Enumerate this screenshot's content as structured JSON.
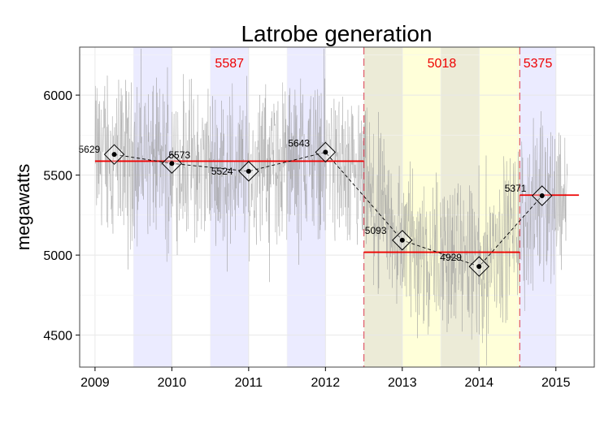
{
  "chart_data": {
    "type": "line",
    "title": "Latrobe generation",
    "xlabel": "",
    "ylabel": "megawatts",
    "xlim": [
      2008.8,
      2015.5
    ],
    "ylim": [
      4300,
      6300
    ],
    "x_ticks": [
      "2009",
      "2010",
      "2011",
      "2012",
      "2013",
      "2014",
      "2015"
    ],
    "y_ticks": [
      "4500",
      "5000",
      "5500",
      "6000"
    ],
    "grid": true,
    "background": "#ffffff",
    "grid_color": "#e8e8e8",
    "shaded_bands": [
      {
        "from": 2009.5,
        "to": 2010.0,
        "color": "#ebebff"
      },
      {
        "from": 2010.5,
        "to": 2011.0,
        "color": "#ebebff"
      },
      {
        "from": 2011.5,
        "to": 2012.0,
        "color": "#ebebff"
      },
      {
        "from": 2012.5,
        "to": 2013.0,
        "color": "#ecebd7"
      },
      {
        "from": 2013.0,
        "to": 2013.5,
        "color": "#ffffd9"
      },
      {
        "from": 2013.5,
        "to": 2014.0,
        "color": "#ecebd7"
      },
      {
        "from": 2014.0,
        "to": 2014.53,
        "color": "#ffffd9"
      },
      {
        "from": 2014.53,
        "to": 2015.0,
        "color": "#ebebff"
      }
    ],
    "regime_boundaries": [
      2012.5,
      2014.53
    ],
    "regime_means": [
      {
        "label": "5587",
        "x_from": 2009.0,
        "x_to": 2012.5,
        "value": 5587
      },
      {
        "label": "5018",
        "x_from": 2012.5,
        "x_to": 2014.53,
        "value": 5018
      },
      {
        "label": "5375",
        "x_from": 2014.53,
        "x_to": 2015.3,
        "value": 5375
      }
    ],
    "period_points": {
      "x": [
        2009.25,
        2010.0,
        2011.0,
        2012.0,
        2013.0,
        2014.0,
        2014.82
      ],
      "y": [
        5629,
        5573,
        5524,
        5643,
        5093,
        4929,
        5371
      ],
      "labels": [
        "5629",
        "5573",
        "5524",
        "5643",
        "5093",
        "4929",
        "5371"
      ]
    },
    "colors": {
      "raw_series": "#9a9a9a",
      "mean_line": "#ee0000",
      "boundary": "#e06070",
      "connector": "#000000"
    }
  }
}
